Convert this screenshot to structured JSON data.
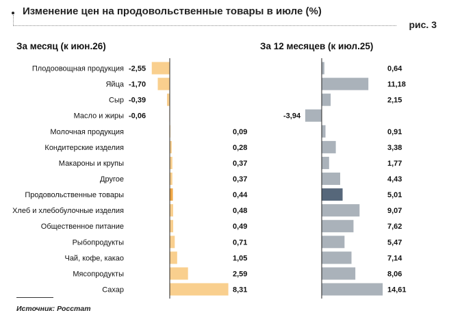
{
  "header": {
    "title": "Изменение цен на продовольственные товары в июле (%)",
    "figure_label": "рис. 3"
  },
  "source": "Источник: Росстат",
  "colors": {
    "left_bar": "#f9cf8e",
    "left_highlight": "#f0a847",
    "right_bar": "#aab2ba",
    "right_highlight": "#56677a",
    "axis": "#222222"
  },
  "chart_data": [
    {
      "type": "bar",
      "orientation": "horizontal",
      "title": "За месяц (к июн.26)",
      "categories": [
        "Плодоовощная продукция",
        "Яйца",
        "Сыр",
        "Масло и жиры",
        "Молочная продукция",
        "Кондитерские изделия",
        "Макароны и крупы",
        "Другое",
        "Продовольственные товары",
        "Хлеб и хлебобулочные изделия",
        "Общественное питание",
        "Рыбопродукты",
        "Чай, кофе, какао",
        "Мясопродукты",
        "Сахар"
      ],
      "values": [
        -2.55,
        -1.7,
        -0.39,
        -0.06,
        0.09,
        0.28,
        0.37,
        0.37,
        0.44,
        0.48,
        0.49,
        0.71,
        1.05,
        2.59,
        8.31
      ],
      "value_labels": [
        "-2,55",
        "-1,70",
        "-0,39",
        "-0,06",
        "0,09",
        "0,28",
        "0,37",
        "0,37",
        "0,44",
        "0,48",
        "0,49",
        "0,71",
        "1,05",
        "2,59",
        "8,31"
      ],
      "highlight": "Продовольственные товары",
      "xlim": [
        -3.0,
        8.6
      ],
      "grid": false,
      "legend": "none"
    },
    {
      "type": "bar",
      "orientation": "horizontal",
      "title": "За 12 месяцев (к июл.25)",
      "categories": [
        "Плодоовощная продукция",
        "Яйца",
        "Сыр",
        "Масло и жиры",
        "Молочная продукция",
        "Кондитерские изделия",
        "Макароны и крупы",
        "Другое",
        "Продовольственные товары",
        "Хлеб и хлебобулочные изделия",
        "Общественное питание",
        "Рыбопродукты",
        "Чай, кофе, какао",
        "Мясопродукты",
        "Сахар"
      ],
      "values": [
        0.64,
        11.18,
        2.15,
        -3.94,
        0.91,
        3.38,
        1.77,
        4.43,
        5.01,
        9.07,
        7.62,
        5.47,
        7.14,
        8.06,
        14.61
      ],
      "value_labels": [
        "0,64",
        "11,18",
        "2,15",
        "-3,94",
        "0,91",
        "3,38",
        "1,77",
        "4,43",
        "5,01",
        "9,07",
        "7,62",
        "5,47",
        "7,14",
        "8,06",
        "14,61"
      ],
      "highlight": "Продовольственные товары",
      "xlim": [
        -4.5,
        15.2
      ],
      "grid": false,
      "legend": "none"
    }
  ]
}
